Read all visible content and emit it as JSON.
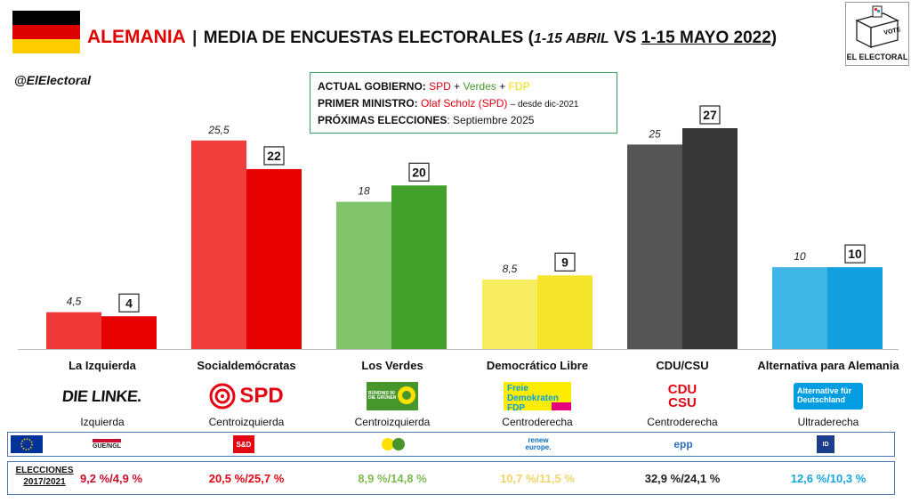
{
  "header": {
    "country": "ALEMANIA",
    "separator": "|",
    "title": "MEDIA DE ENCUESTAS ELECTORALES",
    "paren_open": "(",
    "date1": "1-15 ABRIL",
    "vs": "VS",
    "date2": "1-15 MAYO 2022",
    "paren_close": ")",
    "handle": "@ElElectoral",
    "logo_text": "EL ELECTORAL",
    "logo_vote": "VOTE"
  },
  "info_box": {
    "gov_label": "ACTUAL GOBIERNO:",
    "gov_parties": [
      {
        "name": "SPD",
        "color": "#e3000f"
      },
      {
        "name": "Verdes",
        "color": "#46962b"
      },
      {
        "name": "FDP",
        "color": "#f5d800"
      }
    ],
    "plus": "+",
    "pm_label": "PRIMER MINISTRO:",
    "pm_name": "Olaf Scholz (SPD)",
    "pm_since": "– desde dic-2021",
    "next_label": "PRÓXIMAS ELECCIONES",
    "next_value": ": Septiembre 2025"
  },
  "chart_data": {
    "type": "bar",
    "categories": [
      "La Izquierda",
      "Socialdemócratas",
      "Los Verdes",
      "Democrático Libre",
      "CDU/CSU",
      "Alternativa para Alemania"
    ],
    "series": [
      {
        "values": [
          4.5,
          25.5,
          18,
          8.5,
          25,
          10
        ]
      },
      {
        "values": [
          4,
          22,
          20,
          9,
          27,
          10
        ]
      }
    ],
    "labels_prev": [
      "4,5",
      "25,5",
      "18",
      "8,5",
      "25",
      "10"
    ],
    "labels_curr": [
      "4",
      "22",
      "20",
      "9",
      "27",
      "10"
    ],
    "colors_prev": [
      "#f03a3a",
      "#f23d3d",
      "#82c46c",
      "#f8ed62",
      "#555555",
      "#3fb6e6"
    ],
    "colors_curr": [
      "#e60000",
      "#e60000",
      "#43a02b",
      "#f5e62c",
      "#363636",
      "#13a0e0"
    ],
    "ylim": [
      0,
      30
    ]
  },
  "parties": [
    {
      "name": "La Izquierda",
      "ideology": "Izquierda",
      "logo": "DIE LINKE.",
      "eu_group": "GUE/NGL",
      "elections": "9,2 %/4,9 %",
      "color": "#c8102e"
    },
    {
      "name": "Socialdemócratas",
      "ideology": "Centroizquierda",
      "logo": "SPD",
      "eu_group": "S&D",
      "elections": "20,5 %/25,7 %",
      "color": "#e30613"
    },
    {
      "name": "Los Verdes",
      "ideology": "Centroizquierda",
      "logo": "BÜNDNIS 90 DIE GRÜNEN",
      "eu_group": "Greens/EFA",
      "elections": "8,9 %/14,8 %",
      "color": "#7dbb52"
    },
    {
      "name": "Democrático Libre",
      "ideology": "Centroderecha",
      "logo": "Freie Demokraten FDP",
      "eu_group": "renew europe.",
      "elections": "10,7 %/11,5 %",
      "color": "#f1d46a"
    },
    {
      "name": "CDU/CSU",
      "ideology": "Centroderecha",
      "logo": "CDU CSU",
      "eu_group": "epp",
      "elections": "32,9 %/24,1 %",
      "color": "#222222"
    },
    {
      "name": "Alternativa para Alemania",
      "ideology": "Ultraderecha",
      "logo": "Alternative für Deutschland",
      "eu_group": "ID",
      "elections": "12,6 %/10,3 %",
      "color": "#17a6e0"
    }
  ],
  "elections_label_1": "ELECCIONES",
  "elections_label_2": "2017/2021"
}
